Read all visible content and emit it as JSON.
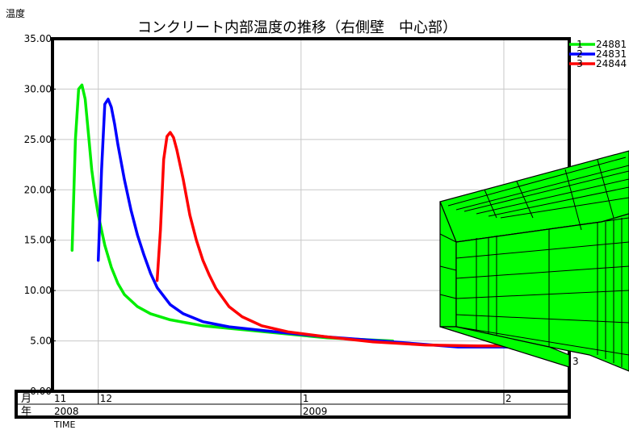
{
  "chart_data": {
    "type": "line",
    "title": "コンクリート内部温度の推移（右側壁　中心部）",
    "ylabel": "温度",
    "xlabel": "TIME",
    "ylim": [
      0,
      35
    ],
    "yticks": [
      "0.00",
      "5.00",
      "10.00",
      "15.00",
      "20.00",
      "25.00",
      "30.00",
      "35.00"
    ],
    "xlim": [
      "2008-11-24",
      "2009-02-11"
    ],
    "month_row_label": "月",
    "year_row_label": "年",
    "month_ticks": [
      {
        "label": "11",
        "date": "2008-11-24"
      },
      {
        "label": "12",
        "date": "2008-12-01"
      },
      {
        "label": "1",
        "date": "2009-01-01"
      },
      {
        "label": "2",
        "date": "2009-02-01"
      }
    ],
    "year_ticks": [
      {
        "label": "2008",
        "date": "2008-11-24"
      },
      {
        "label": "2009",
        "date": "2009-01-01"
      }
    ],
    "legend_position": "top-right",
    "grid": true,
    "series": [
      {
        "id": "1",
        "name": "24881",
        "color": "#00ee00",
        "x": [
          "2008-11-27",
          "2008-11-27T12:00",
          "2008-11-28",
          "2008-11-28T12:00",
          "2008-11-29",
          "2008-11-29T12:00",
          "2008-11-30",
          "2008-11-30T12:00",
          "2008-12-01",
          "2008-12-02",
          "2008-12-03",
          "2008-12-04",
          "2008-12-05",
          "2008-12-07",
          "2008-12-09",
          "2008-12-12",
          "2008-12-17",
          "2008-12-25",
          "2009-01-05",
          "2009-01-15"
        ],
        "y": [
          14.0,
          25.0,
          30.0,
          30.4,
          29.0,
          25.5,
          22.0,
          19.5,
          17.5,
          14.5,
          12.3,
          10.7,
          9.6,
          8.4,
          7.7,
          7.1,
          6.5,
          6.0,
          5.3,
          5.0
        ]
      },
      {
        "id": "2",
        "name": "24831",
        "color": "#0000ff",
        "x": [
          "2008-12-01",
          "2008-12-01T12:00",
          "2008-12-02",
          "2008-12-02T12:00",
          "2008-12-03",
          "2008-12-03T12:00",
          "2008-12-04",
          "2008-12-05",
          "2008-12-06",
          "2008-12-07",
          "2008-12-08",
          "2008-12-09",
          "2008-12-10",
          "2008-12-12",
          "2008-12-14",
          "2008-12-17",
          "2008-12-21",
          "2008-12-28",
          "2009-01-05",
          "2009-01-15",
          "2009-01-25",
          "2009-02-03"
        ],
        "y": [
          13.0,
          22.0,
          28.5,
          29.0,
          28.2,
          26.5,
          24.5,
          21.0,
          18.0,
          15.5,
          13.5,
          11.7,
          10.3,
          8.6,
          7.7,
          6.9,
          6.4,
          5.9,
          5.4,
          4.9,
          4.4,
          4.4
        ]
      },
      {
        "id": "3",
        "name": "24844",
        "color": "#ff0000",
        "x": [
          "2008-12-10",
          "2008-12-10T12:00",
          "2008-12-11",
          "2008-12-11T12:00",
          "2008-12-12",
          "2008-12-12T12:00",
          "2008-12-13",
          "2008-12-14",
          "2008-12-15",
          "2008-12-16",
          "2008-12-17",
          "2008-12-18",
          "2008-12-19",
          "2008-12-21",
          "2008-12-23",
          "2008-12-26",
          "2008-12-30",
          "2009-01-05",
          "2009-01-12",
          "2009-01-20",
          "2009-01-28",
          "2009-02-03"
        ],
        "y": [
          11.0,
          16.0,
          23.0,
          25.3,
          25.7,
          25.2,
          24.0,
          21.0,
          17.5,
          15.0,
          13.0,
          11.5,
          10.2,
          8.4,
          7.4,
          6.5,
          5.9,
          5.4,
          4.9,
          4.6,
          4.5,
          4.5
        ]
      }
    ]
  },
  "model_view": {
    "fill_color": "#00ff00",
    "edge_color": "#000000",
    "node_label": "3"
  }
}
